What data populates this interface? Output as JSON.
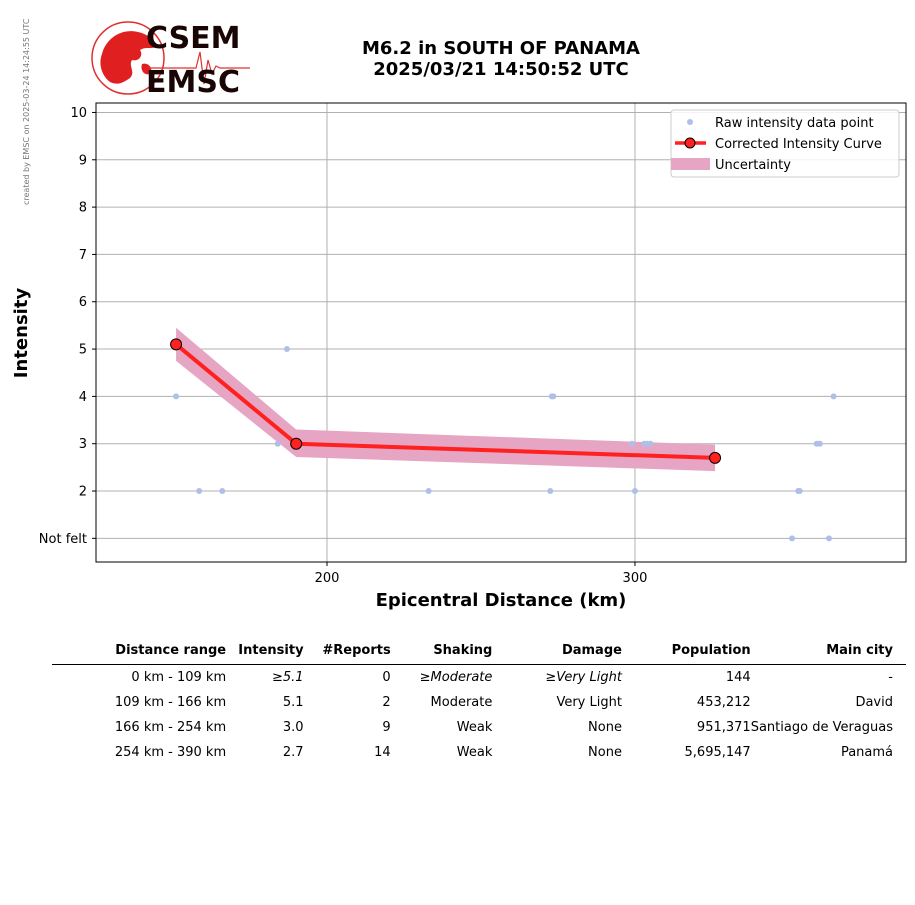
{
  "watermark": "created by EMSC on 2025-03-24 14:24:55 UTC",
  "logo": {
    "line1": "CSEM",
    "line2": "EMSC"
  },
  "title": {
    "line1": "M6.2 in SOUTH OF PANAMA",
    "line2": "2025/03/21 14:50:52 UTC"
  },
  "colors": {
    "raw": "#aec0e8",
    "curve": "#ff2020",
    "uncertainty": "#e6a5c3",
    "grid": "#b0b0b0"
  },
  "chart_data": {
    "type": "line",
    "xlabel": "Epicentral Distance (km)",
    "ylabel": "Intensity",
    "xlim": [
      125,
      388
    ],
    "ylim": [
      0.5,
      10.2
    ],
    "xticks": [
      200,
      300
    ],
    "xtick_labels": [
      "200",
      "300"
    ],
    "yticks": [
      1,
      2,
      3,
      4,
      5,
      6,
      7,
      8,
      9,
      10
    ],
    "ytick_labels": [
      "Not felt",
      "2",
      "3",
      "4",
      "5",
      "6",
      "7",
      "8",
      "9",
      "10"
    ],
    "grid": true,
    "legend": "top-right",
    "legend_labels": [
      "Raw intensity data point",
      "Corrected Intensity Curve",
      "Uncertainty"
    ],
    "raw_points": [
      [
        151,
        4
      ],
      [
        158.5,
        2
      ],
      [
        166,
        2
      ],
      [
        184,
        3
      ],
      [
        187,
        5
      ],
      [
        233,
        2
      ],
      [
        272.5,
        2
      ],
      [
        273,
        4
      ],
      [
        273.5,
        4
      ],
      [
        299,
        3
      ],
      [
        300,
        2
      ],
      [
        303,
        3
      ],
      [
        304,
        3
      ],
      [
        305,
        3
      ],
      [
        351,
        1
      ],
      [
        353,
        2
      ],
      [
        353.5,
        2
      ],
      [
        359,
        3
      ],
      [
        360,
        3
      ],
      [
        363,
        1
      ],
      [
        364.5,
        4
      ]
    ],
    "curve": {
      "x": [
        151,
        190,
        326
      ],
      "y": [
        5.1,
        3.0,
        2.7
      ]
    },
    "uncertainty": {
      "x": [
        151,
        190,
        326
      ],
      "lower": [
        4.75,
        2.72,
        2.42
      ],
      "upper": [
        5.45,
        3.3,
        2.98
      ]
    }
  },
  "table": {
    "headers": [
      "Distance range",
      "Intensity",
      "#Reports",
      "Shaking",
      "Damage",
      "Population",
      "Main city"
    ],
    "rows": [
      {
        "range": "0 km -  109 km",
        "intensity": "≥5.1",
        "reports": "0",
        "shaking": "≥Moderate",
        "damage": "≥Very Light",
        "population": "144",
        "city": "-"
      },
      {
        "range": "109 km -  166 km",
        "intensity": "5.1",
        "reports": "2",
        "shaking": "Moderate",
        "damage": "Very Light",
        "population": "453,212",
        "city": "David"
      },
      {
        "range": "166 km -  254 km",
        "intensity": "3.0",
        "reports": "9",
        "shaking": "Weak",
        "damage": "None",
        "population": "951,371",
        "city": "Santiago de Veraguas"
      },
      {
        "range": "254 km -  390 km",
        "intensity": "2.7",
        "reports": "14",
        "shaking": "Weak",
        "damage": "None",
        "population": "5,695,147",
        "city": "Panamá"
      }
    ]
  }
}
